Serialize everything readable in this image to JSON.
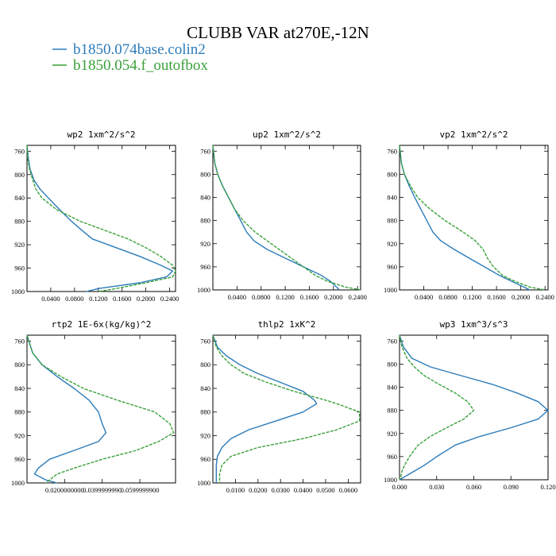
{
  "header": {
    "title": "CLUBB VAR at270E,-12N",
    "legend": [
      {
        "label": "b1850.074base.colin2",
        "color": "#2b7bb9"
      },
      {
        "label": "b1850.054.f_outofbox",
        "color": "#3aa03a"
      }
    ]
  },
  "chart_data": [
    {
      "type": "line",
      "title": "wp2   1xm^2/s^2",
      "xlim": [
        0,
        0.25
      ],
      "ylim": [
        1000,
        750
      ],
      "xticks": [
        0.04,
        0.08,
        0.12,
        0.16,
        0.2,
        0.24
      ],
      "xtick_labels": [
        "0.0400",
        "0.0800",
        "0.1200",
        "0.1600",
        "0.2000",
        "0.2400"
      ],
      "yticks": [
        760,
        800,
        840,
        880,
        920,
        960,
        1000
      ],
      "ytick_labels": [
        "760",
        "800",
        "840",
        "880",
        "920",
        "960",
        "1000"
      ],
      "series": [
        {
          "name": "b1850.074base.colin2",
          "y": [
            750,
            770,
            790,
            810,
            825,
            840,
            860,
            880,
            895,
            910,
            925,
            940,
            955,
            965,
            975,
            985,
            995,
            1000
          ],
          "x": [
            0.0,
            0.002,
            0.005,
            0.012,
            0.022,
            0.036,
            0.055,
            0.075,
            0.092,
            0.11,
            0.15,
            0.19,
            0.225,
            0.245,
            0.235,
            0.19,
            0.12,
            0.1
          ]
        },
        {
          "name": "b1850.054.f_outofbox",
          "y": [
            750,
            770,
            790,
            810,
            825,
            840,
            860,
            880,
            895,
            910,
            925,
            940,
            955,
            965,
            975,
            985,
            995,
            1000
          ],
          "x": [
            0.0,
            0.001,
            0.004,
            0.01,
            0.015,
            0.025,
            0.05,
            0.09,
            0.13,
            0.17,
            0.2,
            0.225,
            0.245,
            0.25,
            0.245,
            0.2,
            0.15,
            0.12
          ]
        }
      ]
    },
    {
      "type": "line",
      "title": "up2   1xm^2/s^2",
      "xlim": [
        0,
        0.245
      ],
      "ylim": [
        1000,
        750
      ],
      "xticks": [
        0.04,
        0.08,
        0.12,
        0.16,
        0.2,
        0.24
      ],
      "xtick_labels": [
        "0.0400",
        "0.0800",
        "0.1200",
        "0.1600",
        "0.2000",
        "0.2400"
      ],
      "yticks": [
        760,
        800,
        840,
        880,
        920,
        960,
        1000
      ],
      "ytick_labels": [
        "760",
        "800",
        "840",
        "880",
        "920",
        "960",
        "1000"
      ],
      "series": [
        {
          "name": "b1850.074base.colin2",
          "y": [
            750,
            780,
            800,
            820,
            840,
            860,
            880,
            900,
            915,
            930,
            945,
            960,
            975,
            985,
            995,
            1000
          ],
          "x": [
            0.0,
            0.003,
            0.008,
            0.016,
            0.026,
            0.036,
            0.046,
            0.056,
            0.068,
            0.09,
            0.12,
            0.15,
            0.18,
            0.195,
            0.205,
            0.21
          ]
        },
        {
          "name": "b1850.054.f_outofbox",
          "y": [
            750,
            780,
            800,
            820,
            840,
            860,
            880,
            900,
            915,
            930,
            945,
            960,
            975,
            985,
            995,
            1000
          ],
          "x": [
            0.0,
            0.003,
            0.008,
            0.016,
            0.026,
            0.036,
            0.05,
            0.07,
            0.09,
            0.11,
            0.13,
            0.15,
            0.17,
            0.19,
            0.22,
            0.245
          ]
        }
      ]
    },
    {
      "type": "line",
      "title": "vp2   1xm^2/s^2",
      "xlim": [
        0,
        0.245
      ],
      "ylim": [
        1000,
        750
      ],
      "xticks": [
        0.04,
        0.08,
        0.12,
        0.16,
        0.2,
        0.24
      ],
      "xtick_labels": [
        "0.0400",
        "0.0800",
        "0.1200",
        "0.1600",
        "0.2000",
        "0.2400"
      ],
      "yticks": [
        760,
        800,
        840,
        880,
        920,
        960,
        1000
      ],
      "ytick_labels": [
        "760",
        "800",
        "840",
        "880",
        "920",
        "960",
        "1000"
      ],
      "series": [
        {
          "name": "b1850.074base.colin2",
          "y": [
            750,
            780,
            800,
            820,
            840,
            860,
            880,
            900,
            915,
            930,
            945,
            960,
            975,
            985,
            995,
            1000
          ],
          "x": [
            0.0,
            0.003,
            0.008,
            0.016,
            0.025,
            0.035,
            0.045,
            0.055,
            0.068,
            0.09,
            0.115,
            0.14,
            0.165,
            0.185,
            0.205,
            0.215
          ]
        },
        {
          "name": "b1850.054.f_outofbox",
          "y": [
            750,
            780,
            800,
            820,
            840,
            860,
            880,
            900,
            915,
            930,
            945,
            960,
            975,
            985,
            995,
            1000
          ],
          "x": [
            0.0,
            0.003,
            0.008,
            0.018,
            0.03,
            0.05,
            0.075,
            0.105,
            0.125,
            0.138,
            0.145,
            0.155,
            0.17,
            0.19,
            0.215,
            0.24
          ]
        }
      ]
    },
    {
      "type": "line",
      "title": "rtp2   1E-6x(kg/kg)^2",
      "xlim": [
        0,
        0.079
      ],
      "ylim": [
        1000,
        750
      ],
      "xticks": [
        0.02,
        0.04,
        0.06
      ],
      "xtick_labels": [
        "0.0200000000",
        "0.0399999990",
        "0.0599999900"
      ],
      "yticks": [
        760,
        800,
        840,
        880,
        920,
        960,
        1000
      ],
      "ytick_labels": [
        "760",
        "800",
        "840",
        "880",
        "920",
        "960",
        "1000"
      ],
      "series": [
        {
          "name": "b1850.074base.colin2",
          "y": [
            750,
            780,
            800,
            820,
            840,
            860,
            880,
            900,
            915,
            930,
            945,
            960,
            975,
            985,
            995,
            1000
          ],
          "x": [
            0.0,
            0.003,
            0.008,
            0.016,
            0.025,
            0.033,
            0.038,
            0.04,
            0.042,
            0.038,
            0.025,
            0.012,
            0.006,
            0.004,
            0.01,
            0.016
          ]
        },
        {
          "name": "b1850.054.f_outofbox",
          "y": [
            750,
            780,
            800,
            820,
            840,
            860,
            880,
            900,
            915,
            930,
            945,
            960,
            975,
            985,
            995,
            1000
          ],
          "x": [
            0.0,
            0.003,
            0.008,
            0.018,
            0.03,
            0.048,
            0.068,
            0.076,
            0.078,
            0.07,
            0.058,
            0.04,
            0.025,
            0.016,
            0.012,
            0.01
          ]
        }
      ]
    },
    {
      "type": "line",
      "title": "thlp2   1xK^2",
      "xlim": [
        0,
        0.0655
      ],
      "ylim": [
        1000,
        750
      ],
      "xticks": [
        0.01,
        0.02,
        0.03,
        0.04,
        0.05,
        0.06
      ],
      "xtick_labels": [
        "0.0100",
        "0.0200",
        "0.0300",
        "0.0400",
        "0.0500",
        "0.0600"
      ],
      "yticks": [
        760,
        800,
        840,
        880,
        920,
        960,
        1000
      ],
      "ytick_labels": [
        "760",
        "800",
        "840",
        "880",
        "920",
        "960",
        "1000"
      ],
      "series": [
        {
          "name": "b1850.074base.colin2",
          "y": [
            750,
            770,
            785,
            800,
            815,
            830,
            845,
            860,
            866,
            880,
            895,
            910,
            925,
            940,
            955,
            970,
            985,
            1000
          ],
          "x": [
            0.0,
            0.002,
            0.006,
            0.012,
            0.02,
            0.03,
            0.04,
            0.045,
            0.046,
            0.04,
            0.028,
            0.016,
            0.008,
            0.004,
            0.002,
            0.0015,
            0.0015,
            0.0015
          ]
        },
        {
          "name": "b1850.054.f_outofbox",
          "y": [
            750,
            770,
            785,
            800,
            815,
            830,
            845,
            860,
            866,
            880,
            895,
            910,
            925,
            940,
            955,
            970,
            985,
            1000
          ],
          "x": [
            0.0,
            0.0015,
            0.004,
            0.008,
            0.014,
            0.024,
            0.036,
            0.05,
            0.055,
            0.065,
            0.065,
            0.055,
            0.04,
            0.02,
            0.008,
            0.004,
            0.003,
            0.003
          ]
        }
      ]
    },
    {
      "type": "line",
      "title": "wp3   1xm^3/s^3",
      "xlim": [
        0,
        0.12
      ],
      "ylim": [
        1000,
        750
      ],
      "xticks": [
        0,
        0.03,
        0.06,
        0.09,
        0.12
      ],
      "xtick_labels": [
        "0.000",
        "0.030",
        "0.060",
        "0.090",
        "0.120"
      ],
      "yticks": [
        760,
        800,
        840,
        880,
        920,
        960,
        1000
      ],
      "ytick_labels": [
        "760",
        "800",
        "840",
        "880",
        "920",
        "960",
        "1000"
      ],
      "series": [
        {
          "name": "b1850.074base.colin2",
          "y": [
            750,
            770,
            790,
            805,
            820,
            835,
            850,
            865,
            880,
            895,
            910,
            925,
            940,
            960,
            975,
            985,
            995,
            1000
          ],
          "x": [
            0.0,
            0.003,
            0.01,
            0.025,
            0.05,
            0.075,
            0.095,
            0.112,
            0.12,
            0.112,
            0.09,
            0.065,
            0.045,
            0.03,
            0.02,
            0.012,
            0.004,
            0.0
          ]
        },
        {
          "name": "b1850.054.f_outofbox",
          "y": [
            750,
            770,
            790,
            805,
            820,
            835,
            850,
            865,
            880,
            895,
            910,
            925,
            940,
            960,
            975,
            985,
            995,
            1000
          ],
          "x": [
            0.0,
            0.002,
            0.006,
            0.012,
            0.02,
            0.032,
            0.045,
            0.055,
            0.06,
            0.052,
            0.038,
            0.025,
            0.015,
            0.008,
            0.004,
            0.002,
            0.001,
            0.0
          ]
        }
      ]
    }
  ]
}
